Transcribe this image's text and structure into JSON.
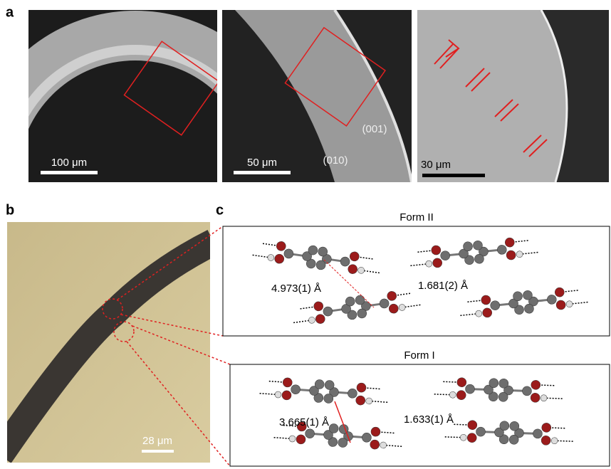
{
  "panel_a": {
    "label": "a",
    "images": [
      {
        "scale_bar": "100 μm"
      },
      {
        "scale_bar": "50 μm",
        "annotations": [
          "(010)",
          "(001)"
        ]
      },
      {
        "scale_bar": "30 μm"
      }
    ]
  },
  "panel_b": {
    "label": "b",
    "scale_bar": "28 μm"
  },
  "panel_c": {
    "label": "c",
    "form_ii": {
      "title": "Form II",
      "distances": [
        "4.973(1) Å",
        "1.681(2) Å"
      ]
    },
    "form_i": {
      "title": "Form I",
      "distances": [
        "3.665(1) Å",
        "1.633(1) Å"
      ]
    }
  }
}
